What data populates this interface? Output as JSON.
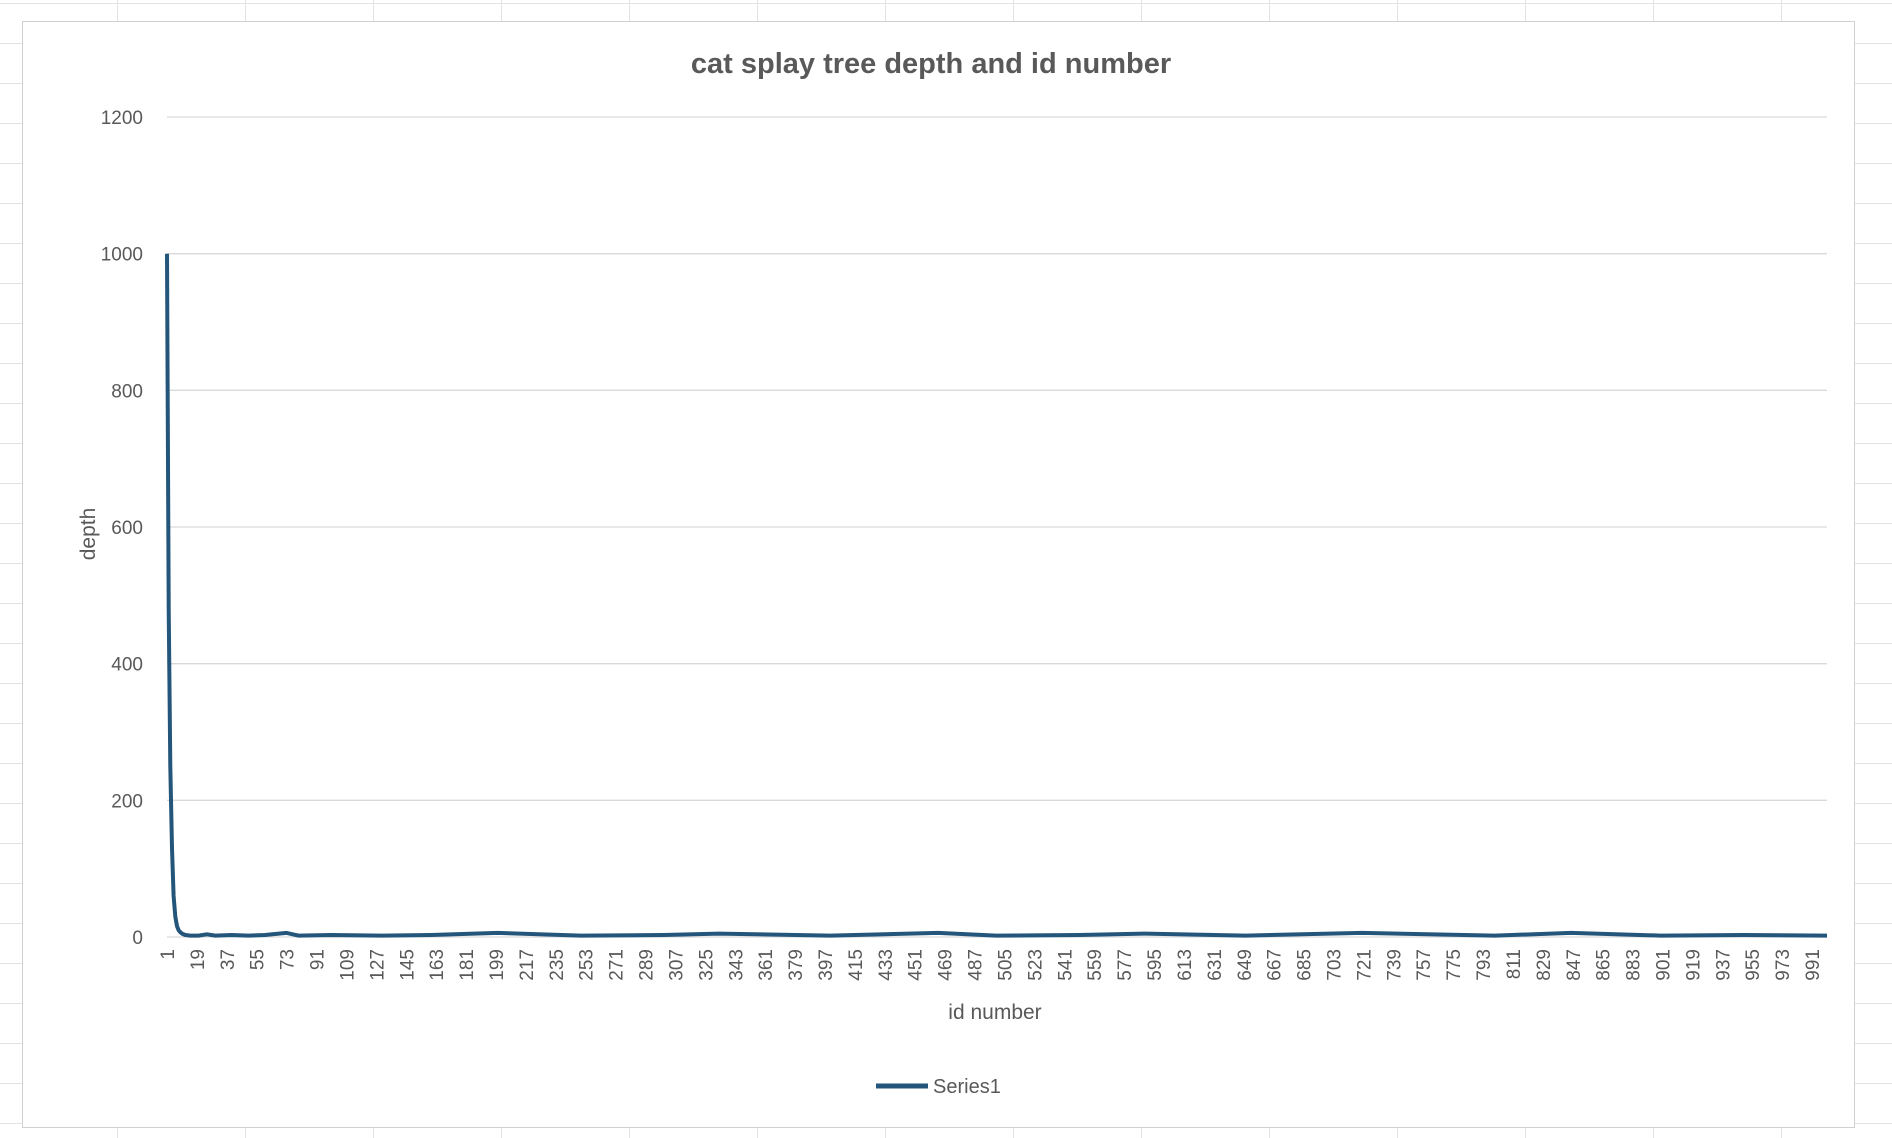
{
  "chart_data": {
    "type": "line",
    "title": "cat splay tree depth and id number",
    "xlabel": "id number",
    "ylabel": "depth",
    "ylim": [
      0,
      1200
    ],
    "yticks": [
      0,
      200,
      400,
      600,
      800,
      1000,
      1200
    ],
    "x_start": 1,
    "x_end": 1000,
    "x_tick_step": 18,
    "grid": true,
    "legend_position": "bottom",
    "series": [
      {
        "name": "Series1",
        "color": "#24557a",
        "points": [
          [
            1,
            1000
          ],
          [
            2,
            480
          ],
          [
            3,
            250
          ],
          [
            4,
            130
          ],
          [
            5,
            60
          ],
          [
            6,
            30
          ],
          [
            7,
            16
          ],
          [
            8,
            10
          ],
          [
            9,
            7
          ],
          [
            10,
            5
          ],
          [
            12,
            3
          ],
          [
            15,
            2
          ],
          [
            20,
            2
          ],
          [
            25,
            4
          ],
          [
            30,
            2
          ],
          [
            40,
            3
          ],
          [
            50,
            2
          ],
          [
            60,
            3
          ],
          [
            73,
            6
          ],
          [
            80,
            2
          ],
          [
            100,
            3
          ],
          [
            130,
            2
          ],
          [
            160,
            3
          ],
          [
            200,
            6
          ],
          [
            250,
            2
          ],
          [
            300,
            3
          ],
          [
            333,
            5
          ],
          [
            400,
            2
          ],
          [
            465,
            6
          ],
          [
            500,
            2
          ],
          [
            550,
            3
          ],
          [
            590,
            5
          ],
          [
            650,
            2
          ],
          [
            720,
            6
          ],
          [
            800,
            2
          ],
          [
            846,
            6
          ],
          [
            900,
            2
          ],
          [
            950,
            3
          ],
          [
            1000,
            2
          ]
        ]
      }
    ]
  }
}
